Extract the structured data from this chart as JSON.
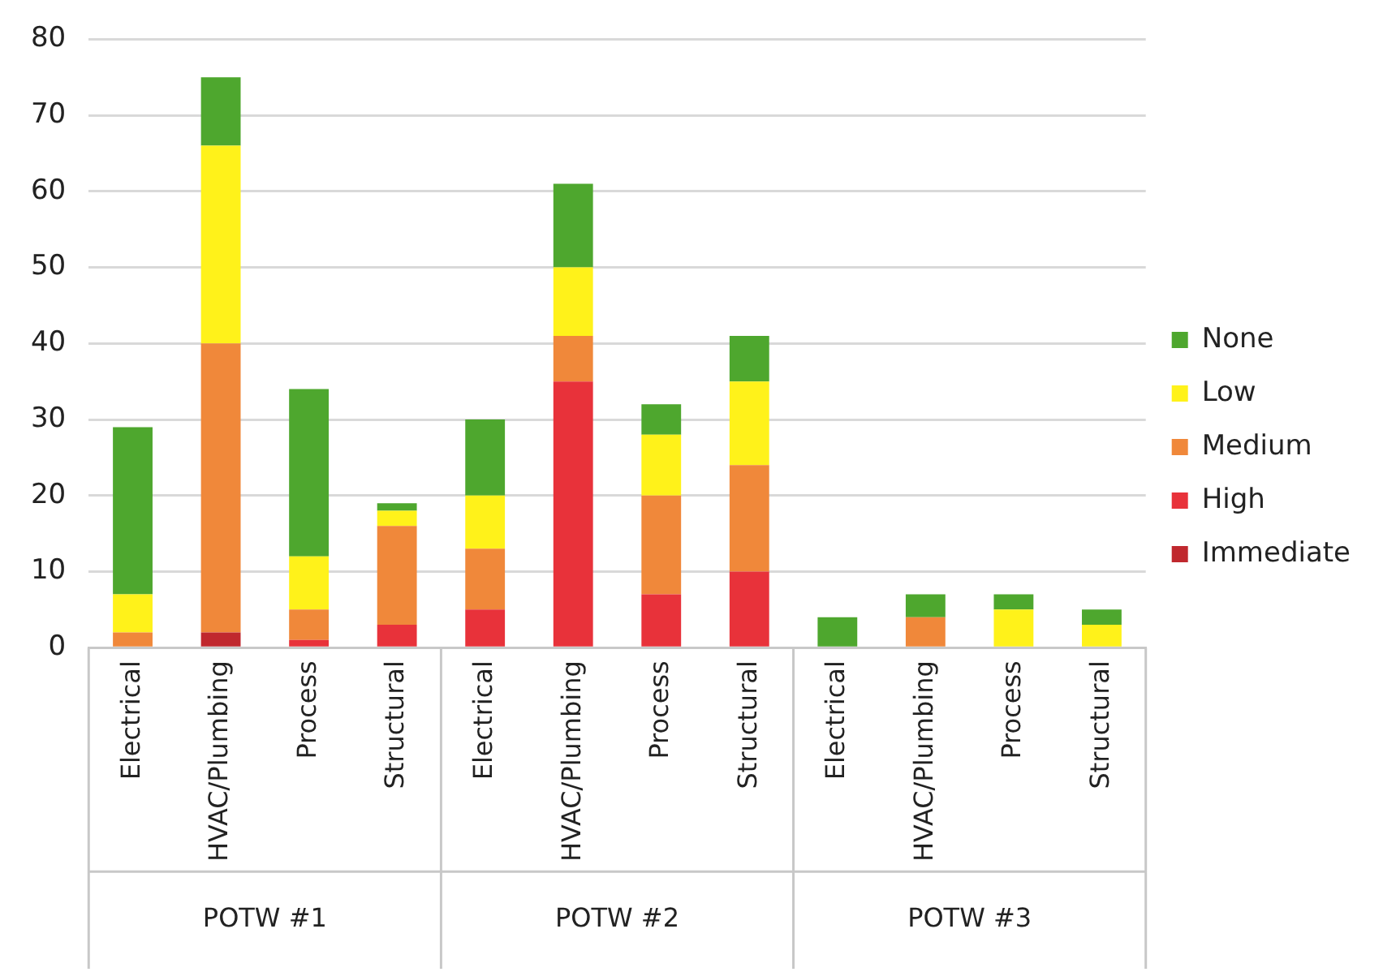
{
  "chart_data": {
    "type": "bar",
    "stacked": true,
    "categories": [
      "Electrical",
      "HVAC/Plumbing",
      "Process",
      "Structural",
      "Electrical",
      "HVAC/Plumbing",
      "Process",
      "Structural",
      "Electrical",
      "HVAC/Plumbing",
      "Process",
      "Structural"
    ],
    "series": [
      {
        "name": "Immediate",
        "color": "#c0282e",
        "values": [
          0,
          2,
          0,
          0,
          0,
          0,
          0,
          0,
          0,
          0,
          0,
          0
        ]
      },
      {
        "name": "High",
        "color": "#e8323a",
        "values": [
          0,
          0,
          1,
          3,
          5,
          35,
          7,
          10,
          0,
          0,
          0,
          0
        ]
      },
      {
        "name": "Medium",
        "color": "#f0883a",
        "values": [
          2,
          38,
          4,
          13,
          8,
          6,
          13,
          14,
          0,
          4,
          0,
          0
        ]
      },
      {
        "name": "Low",
        "color": "#fff21a",
        "values": [
          5,
          26,
          7,
          2,
          7,
          9,
          8,
          11,
          0,
          0,
          5,
          3
        ]
      },
      {
        "name": "None",
        "color": "#4ea72e",
        "values": [
          22,
          9,
          22,
          1,
          10,
          11,
          4,
          6,
          4,
          3,
          2,
          2
        ]
      }
    ],
    "ylim": [
      0,
      80
    ],
    "yticks": [
      0,
      10,
      20,
      30,
      40,
      50,
      60,
      70,
      80
    ],
    "grid": "y",
    "legend": "right",
    "annotations": [
      "POTW #1",
      "POTW #2",
      "POTW #3"
    ]
  }
}
